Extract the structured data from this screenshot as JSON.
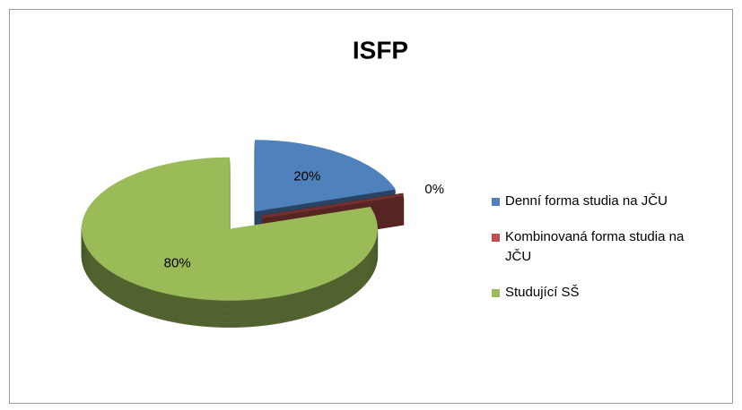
{
  "chart_data": {
    "type": "pie",
    "title": "ISFP",
    "categories": [
      "Denní forma studia na JČU",
      "Kombinovaná forma studia na JČU",
      "Studující SŠ"
    ],
    "values": [
      20,
      0,
      80
    ],
    "value_labels": [
      "20%",
      "0%",
      "80%"
    ],
    "colors": [
      "#4f81bd",
      "#c0504d",
      "#9bbb59"
    ],
    "legend": "right"
  }
}
